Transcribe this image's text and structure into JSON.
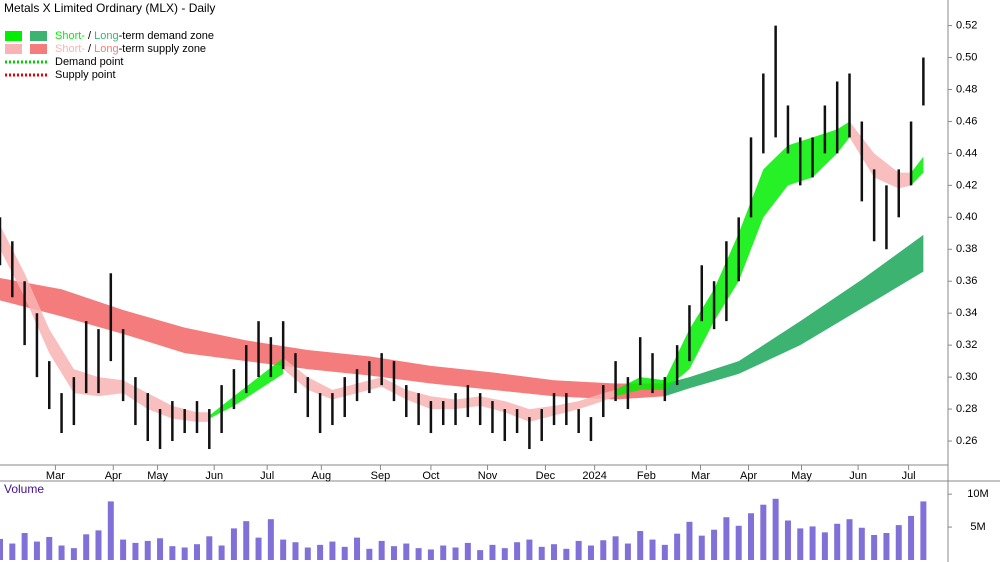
{
  "chart_data": {
    "type": "stock",
    "title": "Metals X Limited Ordinary (MLX) - Daily",
    "legend": [
      {
        "parts": [
          "Short-",
          " / ",
          "Long",
          "-term demand zone"
        ],
        "colors": [
          "#00ee00",
          "#3cb371"
        ]
      },
      {
        "parts": [
          "Short-",
          " / ",
          "Long",
          "-term supply zone"
        ],
        "colors": [
          "#f8b4b4",
          "#f47c7c"
        ]
      },
      {
        "label": "Demand point",
        "color": "#00cc00"
      },
      {
        "label": "Supply point",
        "color": "#ee0000"
      }
    ],
    "xlim": [
      0,
      77
    ],
    "xticks": [
      {
        "value": 4.5,
        "label": "Mar"
      },
      {
        "value": 9.2,
        "label": "Apr"
      },
      {
        "value": 12.8,
        "label": "May"
      },
      {
        "value": 17.4,
        "label": "Jun"
      },
      {
        "value": 21.7,
        "label": "Jul"
      },
      {
        "value": 26.1,
        "label": "Aug"
      },
      {
        "value": 30.9,
        "label": "Sep"
      },
      {
        "value": 35.0,
        "label": "Oct"
      },
      {
        "value": 39.6,
        "label": "Nov"
      },
      {
        "value": 44.3,
        "label": "Dec"
      },
      {
        "value": 48.3,
        "label": "2024"
      },
      {
        "value": 52.5,
        "label": "Feb"
      },
      {
        "value": 56.9,
        "label": "Mar"
      },
      {
        "value": 60.8,
        "label": "Apr"
      },
      {
        "value": 65.1,
        "label": "May"
      },
      {
        "value": 69.7,
        "label": "Jun"
      },
      {
        "value": 73.8,
        "label": "Jul"
      }
    ],
    "ylim": [
      0.245,
      0.536
    ],
    "yticks": [
      0.26,
      0.28,
      {
        "value": 0.3,
        "label": "0.30"
      },
      0.32,
      0.34,
      0.36,
      0.38,
      {
        "value": 0.4,
        "label": "0.40"
      },
      0.42,
      0.44,
      0.46,
      0.48,
      {
        "value": 0.5,
        "label": "0.50"
      },
      0.52
    ],
    "bar_color": "#111111",
    "high": [
      0.4,
      0.385,
      0.36,
      0.34,
      0.31,
      0.29,
      0.3,
      0.335,
      0.33,
      0.365,
      0.33,
      0.3,
      0.29,
      0.28,
      0.285,
      0.28,
      0.285,
      0.28,
      0.295,
      0.305,
      0.32,
      0.335,
      0.325,
      0.335,
      0.315,
      0.3,
      0.29,
      0.29,
      0.3,
      0.305,
      0.31,
      0.315,
      0.31,
      0.295,
      0.29,
      0.285,
      0.285,
      0.29,
      0.295,
      0.29,
      0.285,
      0.28,
      0.28,
      0.275,
      0.28,
      0.29,
      0.29,
      0.28,
      0.275,
      0.295,
      0.31,
      0.3,
      0.325,
      0.315,
      0.3,
      0.32,
      0.345,
      0.37,
      0.36,
      0.385,
      0.4,
      0.45,
      0.49,
      0.52,
      0.47,
      0.45,
      0.45,
      0.47,
      0.485,
      0.49,
      0.46,
      0.43,
      0.42,
      0.43,
      0.46,
      0.5
    ],
    "low": [
      0.37,
      0.35,
      0.32,
      0.3,
      0.28,
      0.265,
      0.27,
      0.29,
      0.29,
      0.31,
      0.285,
      0.27,
      0.26,
      0.255,
      0.26,
      0.265,
      0.265,
      0.255,
      0.265,
      0.28,
      0.29,
      0.3,
      0.3,
      0.305,
      0.29,
      0.275,
      0.265,
      0.27,
      0.275,
      0.285,
      0.29,
      0.295,
      0.285,
      0.275,
      0.27,
      0.265,
      0.27,
      0.27,
      0.275,
      0.27,
      0.265,
      0.26,
      0.265,
      0.255,
      0.26,
      0.27,
      0.27,
      0.265,
      0.26,
      0.275,
      0.285,
      0.28,
      0.295,
      0.29,
      0.285,
      0.295,
      0.31,
      0.335,
      0.33,
      0.335,
      0.36,
      0.4,
      0.44,
      0.45,
      0.44,
      0.42,
      0.425,
      0.44,
      0.44,
      0.45,
      0.41,
      0.385,
      0.38,
      0.4,
      0.42,
      0.47
    ],
    "long_zones": [
      {
        "color": "#f47c7c",
        "x": [
          0,
          5,
          10,
          15,
          20,
          25,
          30,
          35,
          40,
          45,
          50,
          54
        ],
        "upper": [
          0.362,
          0.355,
          0.342,
          0.331,
          0.323,
          0.317,
          0.313,
          0.307,
          0.303,
          0.298,
          0.296,
          0.296
        ],
        "lower": [
          0.348,
          0.338,
          0.327,
          0.315,
          0.31,
          0.305,
          0.301,
          0.296,
          0.292,
          0.288,
          0.286,
          0.288
        ]
      },
      {
        "color": "#3cb371",
        "x": [
          54,
          56,
          60,
          65,
          70,
          75
        ],
        "upper": [
          0.296,
          0.3,
          0.31,
          0.335,
          0.361,
          0.389
        ],
        "lower": [
          0.288,
          0.293,
          0.302,
          0.32,
          0.343,
          0.366
        ]
      }
    ],
    "short_zones": [
      {
        "color": "#f8b4b4",
        "x": [
          0,
          2,
          4,
          6,
          8,
          10,
          12,
          14,
          16,
          17
        ],
        "upper": [
          0.395,
          0.365,
          0.33,
          0.305,
          0.3,
          0.298,
          0.29,
          0.282,
          0.278,
          0.278
        ],
        "lower": [
          0.38,
          0.35,
          0.315,
          0.29,
          0.288,
          0.29,
          0.28,
          0.274,
          0.272,
          0.272
        ]
      },
      {
        "color": "#00ee00",
        "x": [
          17,
          19,
          21,
          23
        ],
        "upper": [
          0.276,
          0.288,
          0.3,
          0.312
        ],
        "lower": [
          0.274,
          0.282,
          0.292,
          0.302
        ]
      },
      {
        "color": "#f8b4b4",
        "x": [
          23,
          25,
          27,
          29,
          31,
          33,
          35,
          37,
          39,
          41,
          43,
          45,
          47,
          49,
          50
        ],
        "upper": [
          0.312,
          0.3,
          0.292,
          0.296,
          0.3,
          0.292,
          0.288,
          0.286,
          0.288,
          0.285,
          0.28,
          0.282,
          0.285,
          0.29,
          0.292
        ],
        "lower": [
          0.305,
          0.292,
          0.286,
          0.29,
          0.294,
          0.286,
          0.28,
          0.28,
          0.282,
          0.278,
          0.272,
          0.276,
          0.28,
          0.285,
          0.288
        ]
      },
      {
        "color": "#00ee00",
        "x": [
          50,
          52,
          54,
          56,
          58,
          60,
          62,
          64,
          66,
          68,
          69
        ],
        "upper": [
          0.292,
          0.3,
          0.298,
          0.33,
          0.355,
          0.39,
          0.43,
          0.445,
          0.45,
          0.455,
          0.46
        ],
        "lower": [
          0.288,
          0.292,
          0.292,
          0.305,
          0.335,
          0.36,
          0.4,
          0.42,
          0.425,
          0.44,
          0.45
        ]
      },
      {
        "color": "#f8b4b4",
        "x": [
          69,
          71,
          73,
          74
        ],
        "upper": [
          0.46,
          0.44,
          0.428,
          0.428
        ],
        "lower": [
          0.45,
          0.425,
          0.418,
          0.42
        ]
      },
      {
        "color": "#00ee00",
        "x": [
          74,
          75
        ],
        "upper": [
          0.428,
          0.438
        ],
        "lower": [
          0.42,
          0.428
        ]
      }
    ],
    "volume": {
      "label": "Volume",
      "color": "#8070d8",
      "ylim": [
        0,
        12000000
      ],
      "yticks": [
        {
          "value": 5000000,
          "label": "5M"
        },
        {
          "value": 10000000,
          "label": "10M"
        }
      ],
      "values": [
        3200000,
        2500000,
        4100000,
        2800000,
        3500000,
        2200000,
        1800000,
        3900000,
        4500000,
        8900000,
        3100000,
        2600000,
        2900000,
        3300000,
        2100000,
        1900000,
        2400000,
        3600000,
        2200000,
        4800000,
        5900000,
        3400000,
        6200000,
        3100000,
        2700000,
        1900000,
        2300000,
        2800000,
        2000000,
        3400000,
        1700000,
        2900000,
        2100000,
        2500000,
        1800000,
        1600000,
        2200000,
        1900000,
        2600000,
        1500000,
        2300000,
        1800000,
        2700000,
        3100000,
        2000000,
        2400000,
        1700000,
        2900000,
        2200000,
        3000000,
        3600000,
        2500000,
        4400000,
        3100000,
        2300000,
        4000000,
        5800000,
        3700000,
        4600000,
        6500000,
        5200000,
        7100000,
        8400000,
        9300000,
        6000000,
        4800000,
        5100000,
        4200000,
        5500000,
        6200000,
        4900000,
        3800000,
        4100000,
        5300000,
        6700000,
        8900000
      ]
    }
  }
}
